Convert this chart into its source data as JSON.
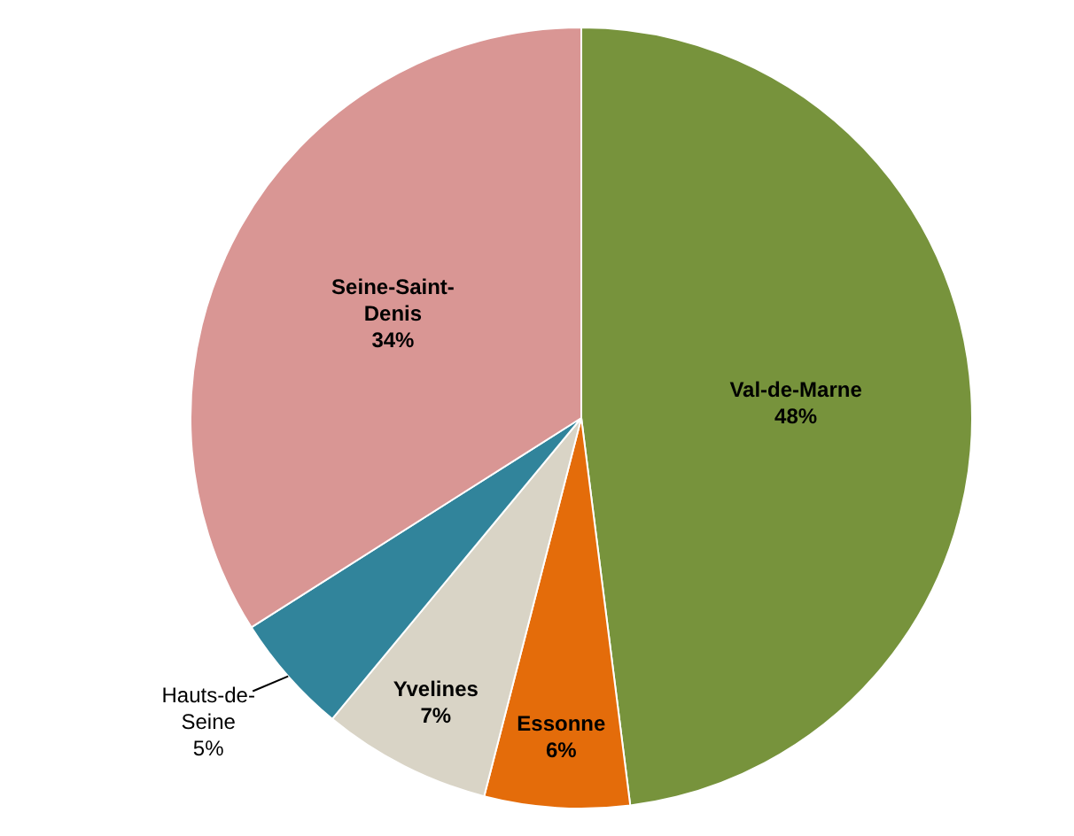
{
  "chart_data": {
    "type": "pie",
    "categories": [
      "Val-de-Marne",
      "Essonne",
      "Yvelines",
      "Hauts-de-Seine",
      "Seine-Saint-Denis"
    ],
    "values": [
      48,
      6,
      7,
      5,
      34
    ],
    "colors": [
      "#77933c",
      "#e46c0a",
      "#d9d4c6",
      "#31849b",
      "#d99694"
    ],
    "value_labels": [
      "48%",
      "6%",
      "7%",
      "5%",
      "34%"
    ],
    "legend": false
  }
}
